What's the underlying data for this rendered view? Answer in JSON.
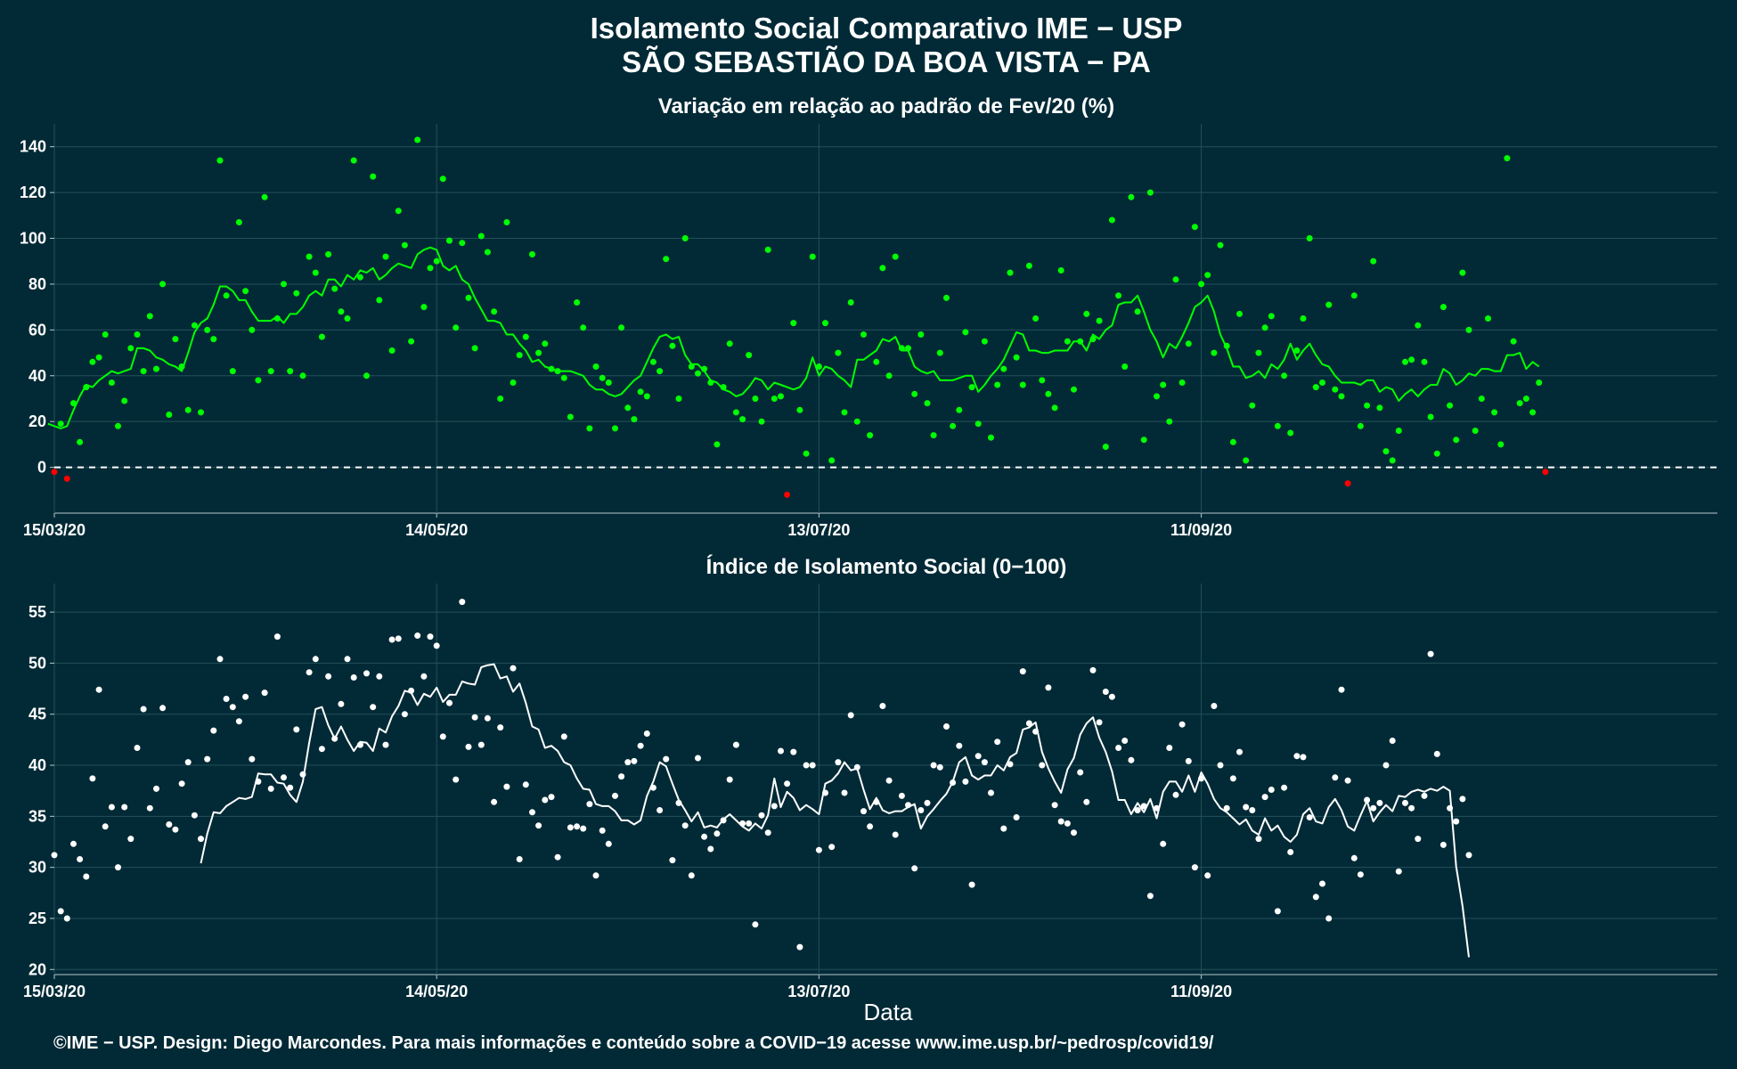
{
  "title": "Isolamento Social Comparativo IME − USP",
  "subtitle": "SÃO SEBASTIÃO DA BOA VISTA − PA",
  "footer": "©IME − USP. Design: Diego Marcondes. Para mais informações e conteúdo sobre a COVID−19 acesse www.ime.usp.br/~pedrosp/covid19/",
  "colors": {
    "background": "#022a36",
    "positive": "#00ff00",
    "negative": "#ff0000",
    "index": "#ffffff",
    "grid": "#22505a"
  },
  "chart_data": [
    {
      "type": "scatter",
      "title": "Variação em relação ao padrão de Fev/20 (%)",
      "xlabel": "",
      "ylabel": "",
      "x_start": "15/03/20",
      "x_end": "01/12/20",
      "xticks": [
        "15/03/20",
        "14/05/20",
        "13/07/20",
        "11/09/20"
      ],
      "yticks": [
        0,
        20,
        40,
        60,
        80,
        100,
        120,
        140
      ],
      "ylim": [
        -20,
        150
      ],
      "reference_line": 0,
      "grid": true,
      "series": [
        {
          "kind": "points",
          "values": [
            -2,
            19,
            -5,
            28,
            11,
            35,
            46,
            48,
            58,
            37,
            18,
            29,
            52,
            58,
            42,
            66,
            43,
            80,
            23,
            56,
            44,
            25,
            62,
            24,
            60,
            56,
            134,
            75,
            42,
            107,
            77,
            60,
            38,
            118,
            42,
            65,
            80,
            42,
            76,
            40,
            92,
            85,
            57,
            93,
            78,
            68,
            65,
            134,
            83,
            40,
            127,
            73,
            92,
            51,
            112,
            97,
            55,
            143,
            70,
            87,
            90,
            126,
            99,
            61,
            98,
            74,
            52,
            101,
            94,
            68,
            30,
            107,
            37,
            49,
            57,
            93,
            50,
            54,
            43,
            42,
            39,
            22,
            72,
            61,
            17,
            44,
            39,
            37,
            17,
            61,
            26,
            21,
            33,
            31,
            46,
            42,
            91,
            53,
            30,
            100,
            44,
            41,
            43,
            37,
            10,
            35,
            54,
            24,
            21,
            49,
            30,
            20,
            95,
            30,
            31,
            -12,
            63,
            25,
            6,
            92,
            44,
            63,
            3,
            50,
            24,
            72,
            20,
            58,
            14,
            46,
            87,
            40,
            92,
            52,
            52,
            32,
            58,
            28,
            14,
            50,
            74,
            18,
            25,
            59,
            35,
            19,
            55,
            13,
            36,
            43,
            85,
            48,
            36,
            88,
            65,
            38,
            32,
            26,
            86,
            55,
            34,
            55,
            67,
            56,
            64,
            9,
            108,
            75,
            44,
            118,
            68,
            12,
            120,
            31,
            36,
            20,
            82,
            37,
            54,
            105,
            80,
            84,
            50,
            97,
            53,
            11,
            67,
            3,
            27,
            50,
            61,
            66,
            18,
            40,
            15,
            51,
            65,
            100,
            35,
            37,
            71,
            34,
            31,
            -7,
            75,
            18,
            27,
            90,
            26,
            7,
            3,
            16,
            46,
            47,
            62,
            46,
            22,
            6,
            70,
            27,
            12,
            85,
            60,
            16,
            30,
            65,
            24,
            10,
            135,
            55,
            28,
            30,
            24,
            37,
            -2
          ]
        },
        {
          "kind": "line",
          "name": "",
          "values": [
            19,
            18,
            17,
            18,
            25,
            31,
            36,
            35,
            38,
            40,
            42,
            41,
            42,
            43,
            52,
            52,
            51,
            48,
            47,
            45,
            44,
            42,
            50,
            59,
            63,
            65,
            71,
            79,
            79,
            77,
            73,
            73,
            68,
            64,
            64,
            64,
            66,
            63,
            67,
            67,
            70,
            75,
            77,
            75,
            82,
            82,
            79,
            84,
            82,
            86,
            85,
            87,
            82,
            84,
            87,
            89,
            88,
            87,
            93,
            95,
            96,
            95,
            88,
            86,
            88,
            82,
            80,
            74,
            69,
            64,
            64,
            63,
            58,
            58,
            54,
            51,
            46,
            47,
            44,
            43,
            42,
            42,
            42,
            41,
            40,
            36,
            34,
            34,
            32,
            31,
            32,
            35,
            38,
            40,
            46,
            52,
            57,
            58,
            56,
            57,
            49,
            45,
            45,
            42,
            38,
            37,
            34,
            33,
            31,
            32,
            35,
            39,
            38,
            34,
            37,
            36,
            35,
            34,
            35,
            39,
            48,
            40,
            44,
            43,
            40,
            38,
            35,
            47,
            47,
            49,
            51,
            56,
            55,
            57,
            51,
            51,
            44,
            42,
            41,
            42,
            38,
            38,
            38,
            39,
            40,
            40,
            33,
            36,
            40,
            43,
            47,
            53,
            59,
            58,
            51,
            51,
            50,
            50,
            51,
            51,
            51,
            55,
            55,
            51,
            58,
            56,
            60,
            62,
            71,
            72,
            72,
            75,
            68,
            60,
            55,
            48,
            54,
            52,
            57,
            63,
            70,
            72,
            75,
            68,
            58,
            52,
            44,
            44,
            39,
            40,
            42,
            39,
            45,
            43,
            47,
            54,
            47,
            51,
            54,
            49,
            45,
            44,
            40,
            37,
            37,
            37,
            36,
            38,
            38,
            33,
            35,
            34,
            29,
            32,
            34,
            31,
            34,
            36,
            36,
            43,
            41,
            36,
            38,
            41,
            40,
            43,
            43,
            42,
            42,
            49,
            49,
            50,
            43,
            46,
            44
          ]
        }
      ]
    },
    {
      "type": "scatter",
      "title": "Índice de Isolamento Social (0−100)",
      "xlabel": "Data",
      "ylabel": "",
      "x_start": "15/03/20",
      "x_end": "01/12/20",
      "xticks": [
        "15/03/20",
        "14/05/20",
        "13/07/20",
        "11/09/20"
      ],
      "yticks": [
        20,
        25,
        30,
        35,
        40,
        45,
        50,
        55
      ],
      "ylim": [
        19.5,
        57.8
      ],
      "grid": true,
      "series": [
        {
          "kind": "points",
          "values": [
            31.2,
            25.7,
            25.0,
            32.3,
            30.8,
            29.1,
            38.7,
            47.4,
            34.0,
            35.9,
            30.0,
            35.9,
            32.8,
            41.7,
            45.5,
            35.8,
            37.7,
            45.6,
            34.2,
            33.7,
            38.2,
            40.3,
            35.1,
            32.8,
            40.6,
            43.4,
            50.4,
            46.5,
            45.7,
            44.3,
            46.7,
            40.6,
            38.4,
            47.1,
            37.7,
            52.6,
            38.8,
            37.8,
            43.5,
            39.1,
            49.1,
            50.4,
            41.6,
            48.7,
            42.6,
            46.0,
            50.4,
            48.6,
            42.0,
            49.0,
            45.7,
            48.7,
            42.0,
            52.3,
            52.4,
            45.0,
            47.3,
            52.7,
            48.7,
            52.6,
            51.7,
            42.8,
            46.1,
            38.6,
            56.0,
            41.8,
            44.7,
            42.0,
            44.6,
            36.4,
            43.7,
            37.9,
            49.5,
            30.8,
            38.1,
            35.4,
            34.1,
            36.6,
            36.9,
            31.0,
            42.8,
            33.9,
            34.0,
            33.8,
            36.2,
            29.2,
            33.6,
            32.3,
            37.0,
            38.9,
            40.3,
            40.4,
            41.9,
            43.1,
            37.8,
            35.6,
            40.6,
            30.7,
            36.3,
            34.1,
            29.2,
            40.7,
            33.0,
            31.8,
            33.3,
            34.6,
            38.6,
            42.0,
            34.3,
            34.3,
            24.4,
            35.1,
            33.4,
            36.0,
            41.4,
            38.2,
            41.3,
            22.2,
            40.0,
            40.0,
            31.7,
            37.3,
            32.0,
            40.3,
            37.3,
            44.9,
            39.8,
            35.5,
            34.0,
            36.4,
            45.8,
            38.5,
            33.2,
            37.0,
            36.1,
            29.9,
            35.6,
            36.3,
            40.0,
            39.8,
            43.8,
            38.3,
            41.9,
            38.4,
            28.3,
            40.9,
            40.3,
            37.3,
            42.3,
            33.8,
            40.1,
            34.9,
            49.2,
            44.1,
            43.3,
            40.0,
            47.6,
            36.1,
            34.5,
            34.3,
            33.4,
            39.3,
            36.4,
            49.3,
            44.2,
            47.2,
            46.7,
            41.7,
            42.4,
            40.5,
            35.6,
            36.0,
            27.2,
            35.8,
            32.3,
            41.7,
            37.1,
            44.0,
            40.4,
            30.0,
            38.7,
            29.2,
            45.8,
            40.0,
            35.8,
            38.7,
            41.3,
            35.9,
            35.6,
            32.8,
            36.9,
            37.6,
            25.7,
            37.8,
            31.5,
            40.9,
            40.8,
            34.9,
            27.1,
            28.4,
            25.0,
            38.8,
            47.4,
            38.5,
            30.9,
            29.3,
            36.6,
            35.8,
            36.3,
            40.0,
            42.4,
            29.6,
            36.3,
            35.8,
            32.8,
            37.0,
            50.9,
            41.1,
            32.2,
            35.8,
            34.5,
            36.7,
            31.2
          ]
        },
        {
          "kind": "line",
          "name": "",
          "values": [
            30.4,
            33.3,
            35.4,
            35.3,
            36.0,
            36.4,
            36.8,
            36.7,
            36.9,
            39.2,
            39.1,
            39.1,
            38.3,
            38.2,
            37.1,
            36.4,
            38.4,
            42.2,
            45.5,
            45.7,
            43.9,
            42.6,
            43.8,
            42.5,
            41.4,
            42.3,
            42.2,
            41.4,
            43.6,
            43.2,
            44.8,
            45.8,
            47.3,
            47.1,
            45.9,
            47.0,
            46.7,
            47.6,
            46.2,
            46.9,
            46.9,
            48.2,
            48.0,
            47.9,
            49.6,
            49.8,
            49.9,
            48.5,
            48.7,
            47.2,
            48.0,
            46.1,
            43.8,
            43.5,
            41.7,
            41.9,
            41.4,
            40.3,
            40.0,
            38.7,
            37.7,
            37.6,
            36.2,
            36.0,
            36.0,
            35.5,
            34.6,
            34.6,
            34.2,
            34.6,
            37.0,
            38.4,
            40.3,
            39.9,
            38.2,
            36.6,
            35.6,
            34.5,
            35.4,
            33.9,
            34.1,
            33.9,
            34.7,
            35.2,
            34.6,
            34.0,
            33.6,
            34.3,
            33.8,
            35.1,
            38.7,
            35.9,
            37.4,
            36.8,
            35.6,
            36.1,
            35.7,
            35.2,
            38.2,
            38.5,
            39.2,
            40.3,
            39.5,
            39.7,
            37.6,
            35.7,
            36.8,
            35.6,
            35.3,
            35.5,
            35.5,
            35.9,
            36.2,
            33.8,
            35.0,
            35.7,
            36.5,
            37.2,
            38.4,
            40.3,
            40.8,
            39.0,
            38.6,
            39.0,
            39.0,
            40.0,
            39.5,
            40.8,
            41.2,
            43.5,
            43.7,
            44.2,
            41.3,
            39.7,
            38.4,
            37.3,
            39.6,
            40.7,
            43.0,
            44.1,
            44.7,
            42.7,
            41.3,
            39.4,
            36.6,
            36.6,
            35.2,
            36.3,
            35.4,
            36.7,
            34.8,
            37.4,
            38.4,
            38.4,
            37.4,
            39.0,
            37.4,
            39.3,
            38.2,
            36.7,
            35.8,
            35.4,
            34.8,
            34.2,
            34.7,
            33.6,
            33.2,
            34.8,
            33.6,
            34.1,
            33.0,
            32.5,
            33.2,
            35.2,
            35.8,
            34.5,
            34.3,
            35.9,
            36.7,
            35.6,
            34.0,
            33.6,
            35.1,
            36.5,
            34.5,
            35.4,
            36.1,
            35.5,
            37.0,
            36.9,
            37.4,
            37.6,
            37.4,
            37.7,
            37.5,
            37.9,
            37.5,
            30.1,
            26.2,
            21.2
          ]
        }
      ]
    }
  ]
}
